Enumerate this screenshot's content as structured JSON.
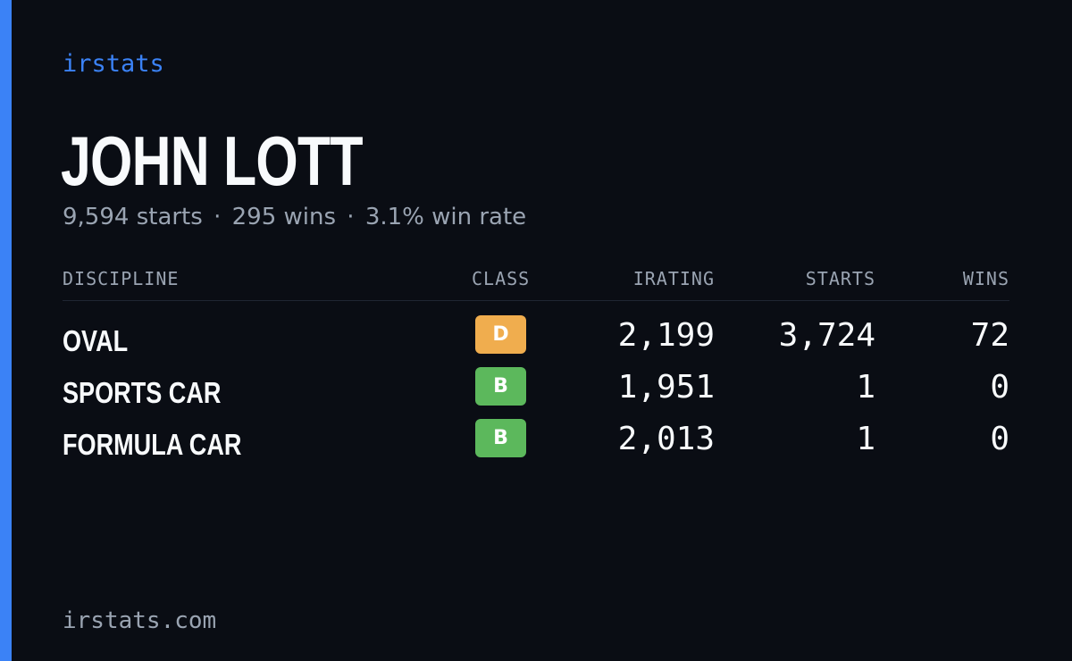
{
  "brand": "irstats",
  "driver": {
    "name": "JOHN LOTT",
    "starts": "9,594 starts",
    "wins": "295 wins",
    "win_rate": "3.1% win rate",
    "separator": "·"
  },
  "table": {
    "headers": {
      "discipline": "DISCIPLINE",
      "class": "CLASS",
      "irating": "IRATING",
      "starts": "STARTS",
      "wins": "WINS"
    },
    "rows": [
      {
        "discipline": "OVAL",
        "class": "D",
        "class_color": "#f0ad4e",
        "irating": "2,199",
        "starts": "3,724",
        "wins": "72"
      },
      {
        "discipline": "SPORTS CAR",
        "class": "B",
        "class_color": "#5cb85c",
        "irating": "1,951",
        "starts": "1",
        "wins": "0"
      },
      {
        "discipline": "FORMULA CAR",
        "class": "B",
        "class_color": "#5cb85c",
        "irating": "2,013",
        "starts": "1",
        "wins": "0"
      }
    ]
  },
  "footer": "irstats.com",
  "colors": {
    "accent": "#3b82f6",
    "background": "#0a0d14",
    "muted_text": "#9aa4b2",
    "primary_text": "#f8fafc"
  }
}
